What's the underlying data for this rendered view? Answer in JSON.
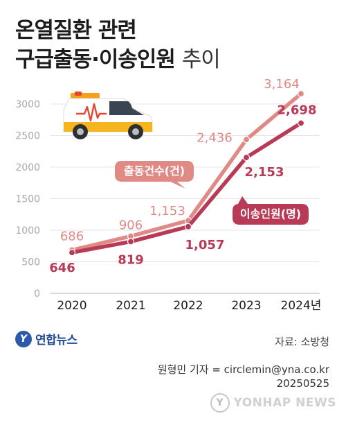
{
  "title_line1": "온열질환 관련",
  "title_line2_bold": "구급출동·이송인원",
  "title_line2_light": "추이",
  "chart_data": {
    "type": "line",
    "categories": [
      "2020",
      "2021",
      "2022",
      "2023",
      "2024년"
    ],
    "ylim": [
      0,
      3000
    ],
    "yticks": [
      0,
      500,
      1000,
      1500,
      2000,
      2500,
      3000
    ],
    "grid": true,
    "series": [
      {
        "name": "출동건수(건)",
        "values": [
          686,
          906,
          1153,
          2436,
          3164
        ],
        "color": "#e08a86"
      },
      {
        "name": "이송인원(명)",
        "values": [
          646,
          819,
          1057,
          2153,
          2698
        ],
        "color": "#b83a57"
      }
    ]
  },
  "source": "자료: 소방청",
  "credit_line1": "원형민 기자 = circlemin@yna.co.kr",
  "credit_line2": "20250525",
  "logo_text": "연합뉴스",
  "watermark_text": "YONHAP NEWS"
}
